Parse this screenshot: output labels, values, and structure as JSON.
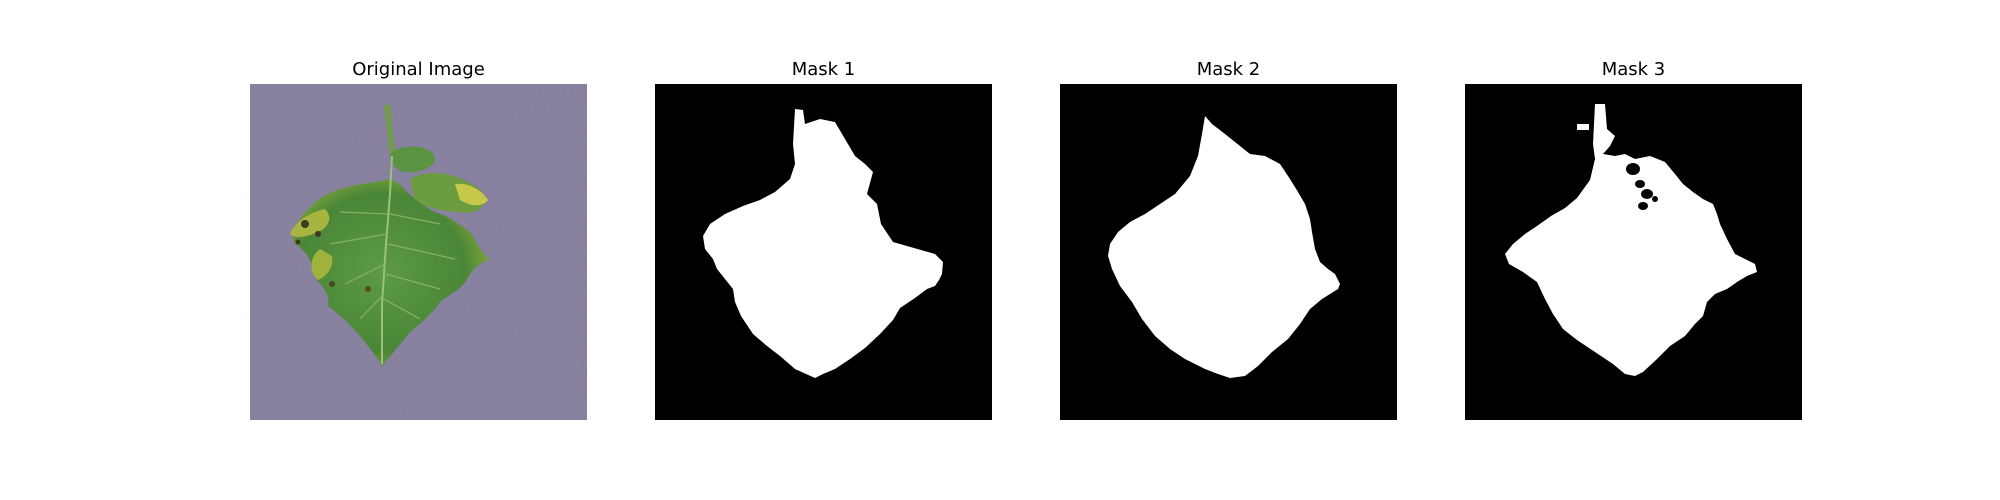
{
  "figure": {
    "panels": [
      {
        "title": "Original Image"
      },
      {
        "title": "Mask 1"
      },
      {
        "title": "Mask 2"
      },
      {
        "title": "Mask 3"
      }
    ]
  },
  "colors": {
    "background_surface": "#8e86a6",
    "leaf_green": "#4e8a3a",
    "mask_background": "#000000",
    "mask_foreground": "#ffffff"
  }
}
